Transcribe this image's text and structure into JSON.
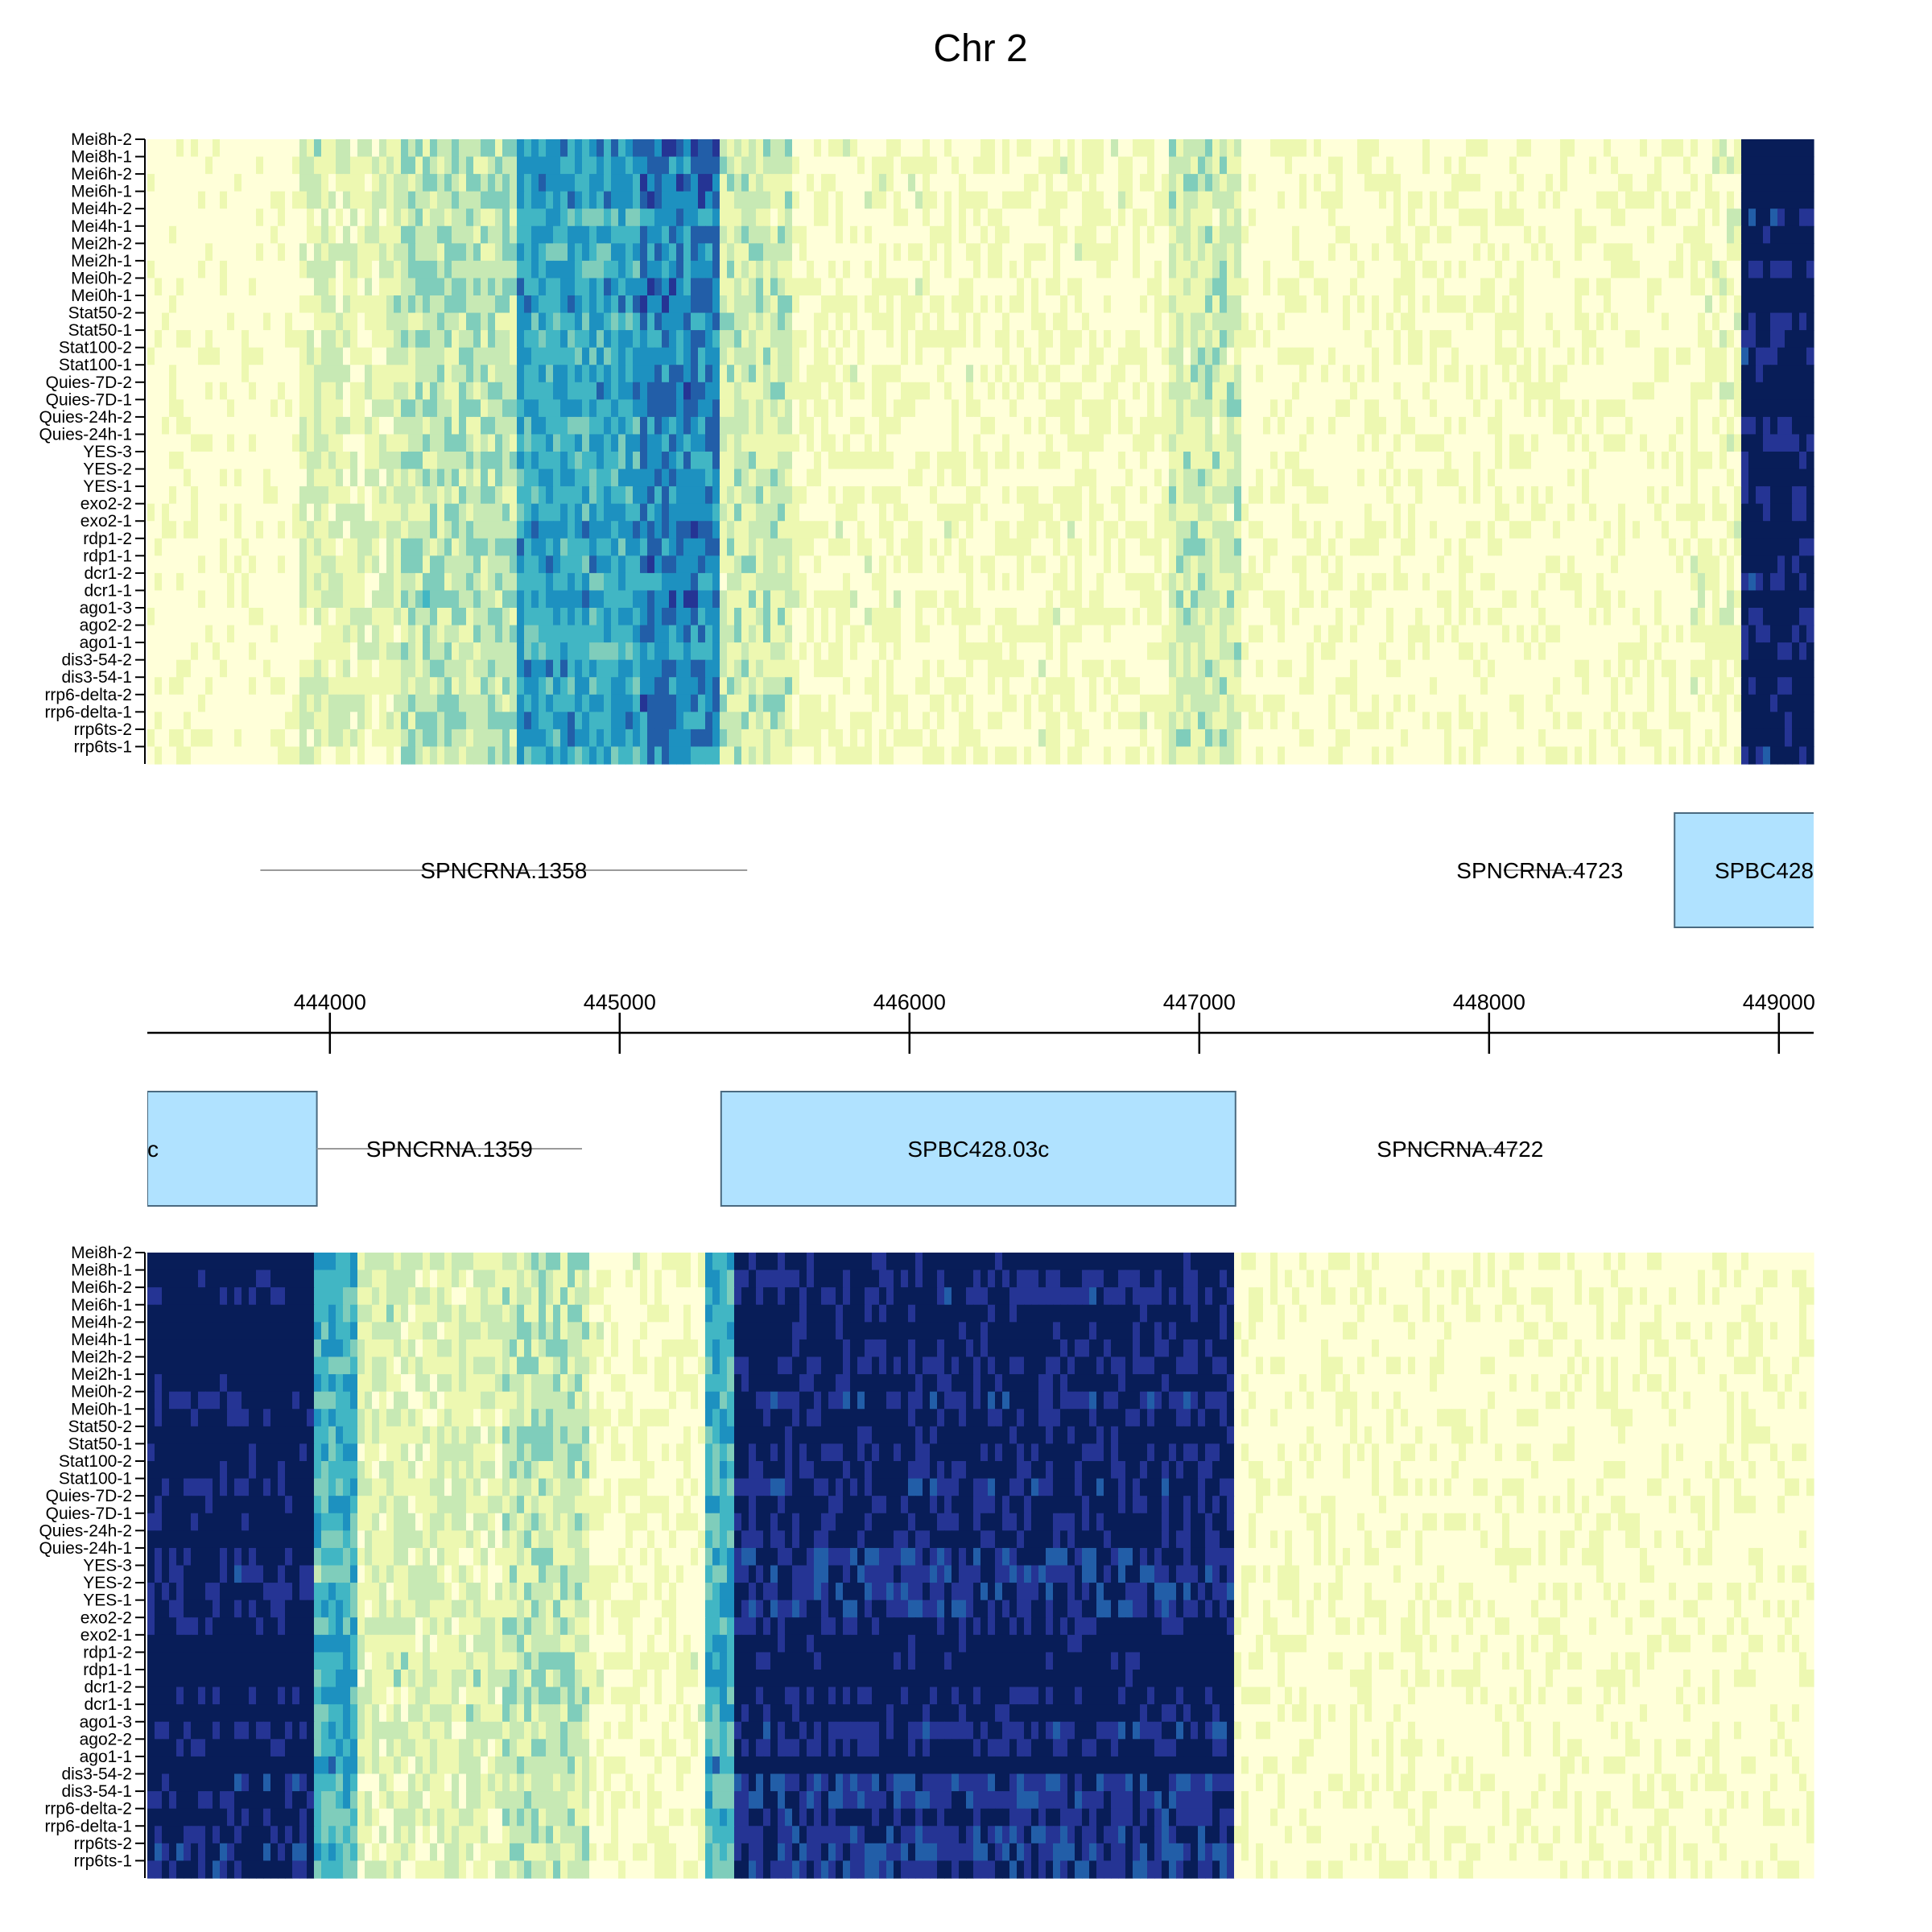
{
  "chart_data": {
    "type": "heatmap",
    "title": "Chr 2",
    "samples": [
      "Mei8h-2",
      "Mei8h-1",
      "Mei6h-2",
      "Mei6h-1",
      "Mei4h-2",
      "Mei4h-1",
      "Mei2h-2",
      "Mei2h-1",
      "Mei0h-2",
      "Mei0h-1",
      "Stat50-2",
      "Stat50-1",
      "Stat100-2",
      "Stat100-1",
      "Quies-7D-2",
      "Quies-7D-1",
      "Quies-24h-2",
      "Quies-24h-1",
      "YES-3",
      "YES-2",
      "YES-1",
      "exo2-2",
      "exo2-1",
      "rdp1-2",
      "rdp1-1",
      "dcr1-2",
      "dcr1-1",
      "ago1-3",
      "ago2-2",
      "ago1-1",
      "dis3-54-2",
      "dis3-54-1",
      "rrp6-delta-2",
      "rrp6-delta-1",
      "rrp6ts-2",
      "rrp6ts-1"
    ],
    "x_axis": {
      "ticks": [
        444000,
        445000,
        446000,
        447000,
        448000,
        449000
      ],
      "range": [
        443370,
        449120
      ]
    },
    "colorscale": [
      "#ffffd9",
      "#edf8b1",
      "#c7e9b4",
      "#7fcdbb",
      "#41b6c4",
      "#1d91c0",
      "#225ea8",
      "#253494",
      "#081d58"
    ],
    "forward_strand_features": [
      {
        "name": "SPNCRNA.1358",
        "start": 443760,
        "end": 445440,
        "kind": "ncRNA"
      },
      {
        "name": "SPNCRNA.4723",
        "start": 448050,
        "end": 448300,
        "kind": "ncRNA"
      },
      {
        "name": "SPBC428",
        "start": 448640,
        "end": 449200,
        "kind": "gene"
      }
    ],
    "reverse_strand_features": [
      {
        "name": "c",
        "start": 443300,
        "end": 443955,
        "kind": "gene"
      },
      {
        "name": "SPNCRNA.1359",
        "start": 443955,
        "end": 444870,
        "kind": "ncRNA"
      },
      {
        "name": "SPBC428.03c",
        "start": 445350,
        "end": 447125,
        "kind": "gene"
      },
      {
        "name": "SPNCRNA.4722",
        "start": 447700,
        "end": 448100,
        "kind": "ncRNA"
      }
    ],
    "forward_signal_bands": [
      {
        "start": 443370,
        "end": 443900,
        "level": 0.03
      },
      {
        "start": 443900,
        "end": 444250,
        "level": 0.2
      },
      {
        "start": 444250,
        "end": 444650,
        "level": 0.3
      },
      {
        "start": 444650,
        "end": 445080,
        "level": 0.55
      },
      {
        "start": 445080,
        "end": 445340,
        "level": 0.65
      },
      {
        "start": 445340,
        "end": 445600,
        "level": 0.25
      },
      {
        "start": 445600,
        "end": 446900,
        "level": 0.1
      },
      {
        "start": 446900,
        "end": 447150,
        "level": 0.25
      },
      {
        "start": 447150,
        "end": 448700,
        "level": 0.06
      },
      {
        "start": 448700,
        "end": 448880,
        "level": 0.12
      },
      {
        "start": 448880,
        "end": 449120,
        "level": 0.97
      }
    ],
    "reverse_signal_bands": [
      {
        "start": 443370,
        "end": 443950,
        "level": 0.97
      },
      {
        "start": 443950,
        "end": 444100,
        "level": 0.5
      },
      {
        "start": 444100,
        "end": 444600,
        "level": 0.2
      },
      {
        "start": 444600,
        "end": 444900,
        "level": 0.28
      },
      {
        "start": 444900,
        "end": 445300,
        "level": 0.1
      },
      {
        "start": 445300,
        "end": 445400,
        "level": 0.5
      },
      {
        "start": 445400,
        "end": 447120,
        "level": 0.92
      },
      {
        "start": 447120,
        "end": 449120,
        "level": 0.06
      }
    ]
  }
}
